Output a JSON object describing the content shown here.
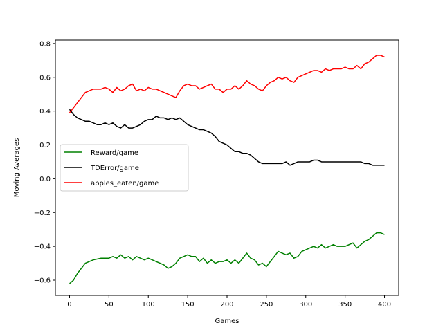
{
  "chart_data": {
    "type": "line",
    "title": "",
    "xlabel": "Games",
    "ylabel": "Moving Averages",
    "xlim": [
      -18,
      418
    ],
    "ylim": [
      -0.69,
      0.82
    ],
    "xticks": [
      0,
      50,
      100,
      150,
      200,
      250,
      300,
      350,
      400
    ],
    "yticks": [
      -0.6,
      -0.4,
      -0.2,
      0.0,
      0.2,
      0.4,
      0.6,
      0.8
    ],
    "ytick_labels": [
      "−0.6",
      "−0.4",
      "−0.2",
      "0.0",
      "0.2",
      "0.4",
      "0.6",
      "0.8"
    ],
    "grid": false,
    "legend_position": "center-left",
    "series": [
      {
        "name": "Reward/game",
        "color": "#008000",
        "x": [
          0,
          5,
          10,
          15,
          20,
          25,
          30,
          40,
          50,
          55,
          60,
          65,
          70,
          75,
          80,
          85,
          90,
          95,
          100,
          105,
          110,
          115,
          120,
          125,
          130,
          135,
          140,
          145,
          150,
          155,
          160,
          165,
          170,
          175,
          180,
          185,
          190,
          195,
          200,
          205,
          210,
          215,
          220,
          225,
          230,
          235,
          240,
          245,
          250,
          255,
          260,
          265,
          270,
          275,
          280,
          285,
          290,
          295,
          300,
          305,
          310,
          315,
          320,
          325,
          330,
          335,
          340,
          345,
          350,
          355,
          360,
          365,
          370,
          375,
          380,
          385,
          390,
          395,
          400
        ],
        "y": [
          -0.62,
          -0.6,
          -0.56,
          -0.53,
          -0.5,
          -0.49,
          -0.48,
          -0.47,
          -0.47,
          -0.46,
          -0.47,
          -0.45,
          -0.47,
          -0.46,
          -0.48,
          -0.46,
          -0.47,
          -0.48,
          -0.47,
          -0.48,
          -0.49,
          -0.5,
          -0.51,
          -0.53,
          -0.52,
          -0.5,
          -0.47,
          -0.46,
          -0.45,
          -0.46,
          -0.46,
          -0.49,
          -0.47,
          -0.5,
          -0.48,
          -0.5,
          -0.49,
          -0.49,
          -0.48,
          -0.5,
          -0.48,
          -0.5,
          -0.47,
          -0.44,
          -0.47,
          -0.48,
          -0.51,
          -0.5,
          -0.52,
          -0.49,
          -0.46,
          -0.43,
          -0.44,
          -0.45,
          -0.44,
          -0.47,
          -0.46,
          -0.43,
          -0.42,
          -0.41,
          -0.4,
          -0.41,
          -0.39,
          -0.41,
          -0.4,
          -0.39,
          -0.4,
          -0.4,
          -0.4,
          -0.39,
          -0.38,
          -0.41,
          -0.39,
          -0.37,
          -0.36,
          -0.34,
          -0.32,
          -0.32,
          -0.33
        ]
      },
      {
        "name": "TDError/game",
        "color": "#000000",
        "x": [
          0,
          5,
          10,
          15,
          20,
          25,
          30,
          35,
          40,
          45,
          50,
          55,
          60,
          65,
          70,
          75,
          80,
          85,
          90,
          95,
          100,
          105,
          110,
          115,
          120,
          125,
          130,
          135,
          140,
          145,
          150,
          155,
          160,
          165,
          170,
          175,
          180,
          185,
          190,
          195,
          200,
          205,
          210,
          215,
          220,
          225,
          230,
          235,
          240,
          245,
          250,
          255,
          260,
          265,
          270,
          275,
          280,
          285,
          290,
          295,
          300,
          305,
          310,
          315,
          320,
          325,
          330,
          335,
          340,
          345,
          350,
          355,
          360,
          365,
          370,
          375,
          380,
          385,
          390,
          395,
          400
        ],
        "y": [
          0.41,
          0.38,
          0.36,
          0.35,
          0.34,
          0.34,
          0.33,
          0.32,
          0.32,
          0.33,
          0.32,
          0.33,
          0.31,
          0.3,
          0.32,
          0.3,
          0.3,
          0.31,
          0.32,
          0.34,
          0.35,
          0.35,
          0.37,
          0.36,
          0.36,
          0.35,
          0.36,
          0.35,
          0.36,
          0.34,
          0.32,
          0.31,
          0.3,
          0.29,
          0.29,
          0.28,
          0.27,
          0.25,
          0.22,
          0.21,
          0.2,
          0.18,
          0.16,
          0.16,
          0.15,
          0.15,
          0.14,
          0.12,
          0.1,
          0.09,
          0.09,
          0.09,
          0.09,
          0.09,
          0.09,
          0.1,
          0.08,
          0.09,
          0.1,
          0.1,
          0.1,
          0.1,
          0.11,
          0.11,
          0.1,
          0.1,
          0.1,
          0.1,
          0.1,
          0.1,
          0.1,
          0.1,
          0.1,
          0.1,
          0.1,
          0.09,
          0.09,
          0.08,
          0.08,
          0.08,
          0.08
        ]
      },
      {
        "name": "apples_eaten/game",
        "color": "#ff0000",
        "x": [
          0,
          5,
          10,
          15,
          20,
          25,
          30,
          35,
          40,
          45,
          50,
          55,
          60,
          65,
          70,
          75,
          80,
          85,
          90,
          95,
          100,
          105,
          110,
          115,
          120,
          125,
          130,
          135,
          140,
          145,
          150,
          155,
          160,
          165,
          170,
          175,
          180,
          185,
          190,
          195,
          200,
          205,
          210,
          215,
          220,
          225,
          230,
          235,
          240,
          245,
          250,
          255,
          260,
          265,
          270,
          275,
          280,
          285,
          290,
          295,
          300,
          305,
          310,
          315,
          320,
          325,
          330,
          335,
          340,
          345,
          350,
          355,
          360,
          365,
          370,
          375,
          380,
          385,
          390,
          395,
          400
        ],
        "y": [
          0.39,
          0.42,
          0.45,
          0.48,
          0.51,
          0.52,
          0.53,
          0.53,
          0.53,
          0.54,
          0.53,
          0.51,
          0.54,
          0.52,
          0.53,
          0.55,
          0.56,
          0.52,
          0.53,
          0.52,
          0.54,
          0.53,
          0.53,
          0.52,
          0.51,
          0.5,
          0.49,
          0.48,
          0.52,
          0.55,
          0.56,
          0.55,
          0.55,
          0.53,
          0.54,
          0.55,
          0.56,
          0.53,
          0.53,
          0.51,
          0.53,
          0.53,
          0.55,
          0.53,
          0.55,
          0.58,
          0.56,
          0.55,
          0.53,
          0.52,
          0.55,
          0.57,
          0.58,
          0.6,
          0.59,
          0.6,
          0.58,
          0.57,
          0.6,
          0.61,
          0.62,
          0.63,
          0.64,
          0.64,
          0.63,
          0.65,
          0.64,
          0.65,
          0.65,
          0.65,
          0.66,
          0.65,
          0.65,
          0.67,
          0.65,
          0.68,
          0.69,
          0.71,
          0.73,
          0.73,
          0.72
        ]
      }
    ]
  }
}
